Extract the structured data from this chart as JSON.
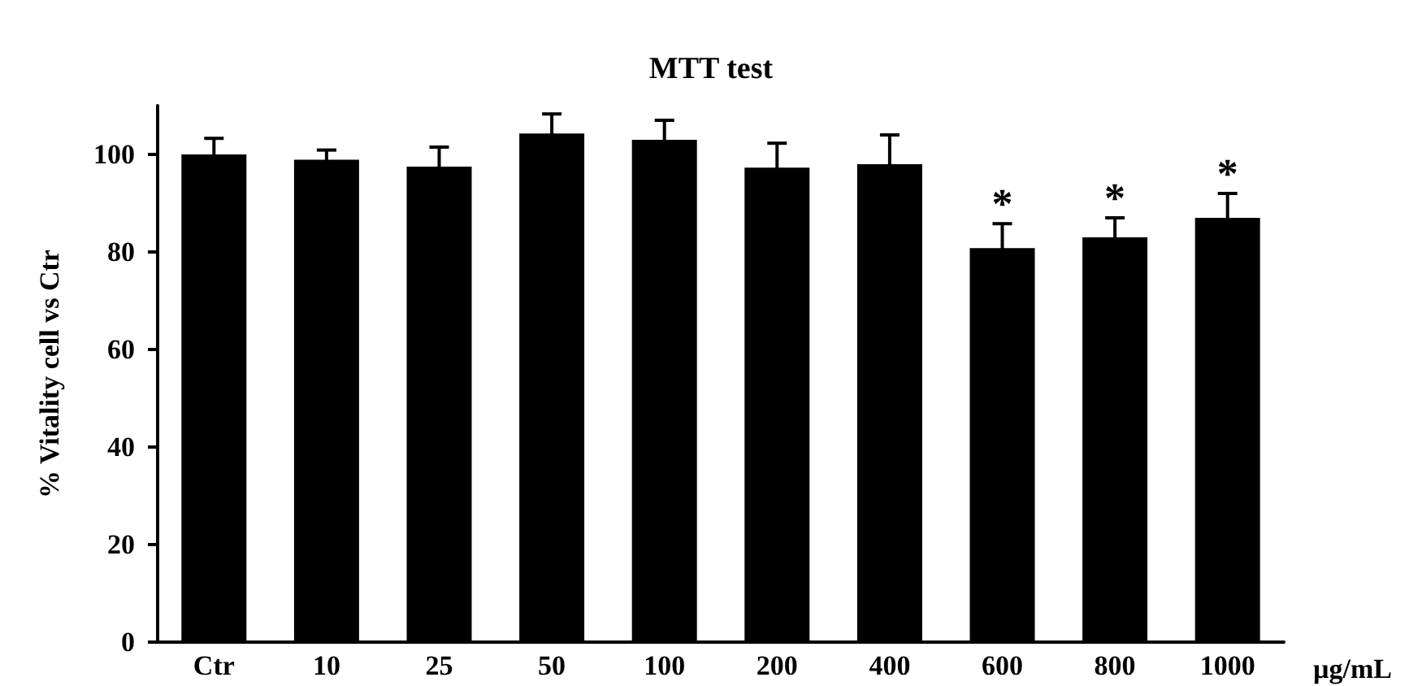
{
  "chart_data": {
    "type": "bar",
    "title": "MTT test",
    "xlabel": "µg/mL",
    "ylabel": "% Vitality cell vs Ctr",
    "categories": [
      "Ctr",
      "10",
      "25",
      "50",
      "100",
      "200",
      "400",
      "600",
      "800",
      "1000"
    ],
    "values": [
      100,
      98.9,
      97.5,
      104.3,
      103,
      97.3,
      98,
      80.8,
      83,
      87
    ],
    "errors": [
      3.3,
      2,
      4,
      4,
      4,
      5,
      6,
      5,
      4,
      5
    ],
    "color": "#000000",
    "ylim": [
      0,
      110
    ],
    "yticks": [
      0,
      20,
      40,
      60,
      80,
      100
    ],
    "grid": false,
    "annotations": [
      {
        "text": "*",
        "x": "600",
        "y": 80.8
      },
      {
        "text": "*",
        "x": "800",
        "y": 83
      },
      {
        "text": "*",
        "x": "1000",
        "y": 87
      }
    ]
  }
}
